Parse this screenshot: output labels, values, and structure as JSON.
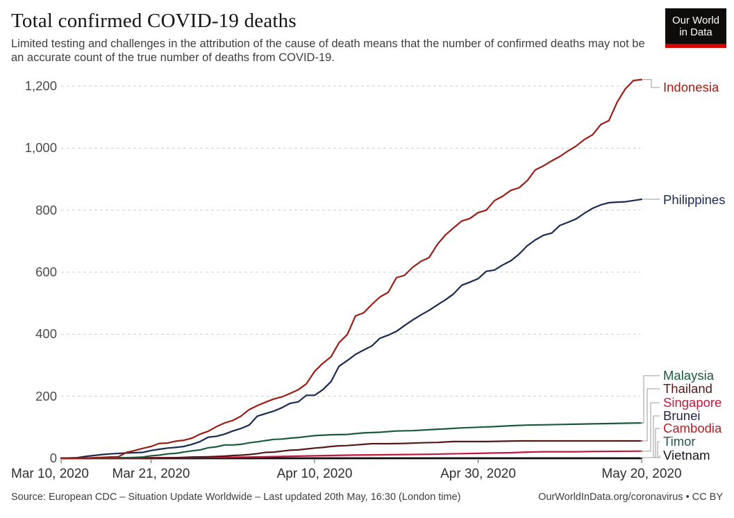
{
  "header": {
    "title": "Total confirmed COVID-19 deaths",
    "subtitle": "Limited testing and challenges in the attribution of the cause of death means that the number of confirmed deaths may not be an accurate count of the true number of deaths from COVID-19."
  },
  "logo": {
    "line1": "Our World",
    "line2": "in Data",
    "bg_color": "#0d0c0b",
    "accent_color": "#d40000"
  },
  "chart_data": {
    "type": "line",
    "title": "Total confirmed COVID-19 deaths",
    "x_axis": {
      "tick_labels": [
        "Mar 10, 2020",
        "Mar 21, 2020",
        "Apr 10, 2020",
        "Apr 30, 2020",
        "May 20, 2020"
      ],
      "tick_days_from_start": [
        0,
        11,
        31,
        51,
        71
      ],
      "range_days": [
        0,
        71
      ],
      "start_date": "Mar 10, 2020",
      "end_date": "May 20, 2020"
    },
    "y_axis": {
      "ticks": [
        0,
        200,
        400,
        600,
        800,
        1000,
        1200
      ],
      "tick_labels": [
        "0",
        "200",
        "400",
        "600",
        "800",
        "1,000",
        "1,200"
      ],
      "ylim": [
        0,
        1280
      ],
      "gridlines": "dashed"
    },
    "legend_position": "right-end-labels",
    "series": [
      {
        "name": "Indonesia",
        "color": "#9b1c13",
        "end_value": 1221,
        "points": [
          [
            0,
            0
          ],
          [
            3,
            1
          ],
          [
            6,
            4
          ],
          [
            7,
            5
          ],
          [
            8,
            19
          ],
          [
            9,
            25
          ],
          [
            10,
            32
          ],
          [
            11,
            38
          ],
          [
            12,
            48
          ],
          [
            13,
            49
          ],
          [
            14,
            55
          ],
          [
            15,
            58
          ],
          [
            16,
            65
          ],
          [
            17,
            78
          ],
          [
            18,
            87
          ],
          [
            19,
            102
          ],
          [
            20,
            114
          ],
          [
            21,
            122
          ],
          [
            22,
            136
          ],
          [
            23,
            157
          ],
          [
            24,
            170
          ],
          [
            25,
            181
          ],
          [
            26,
            191
          ],
          [
            27,
            198
          ],
          [
            28,
            209
          ],
          [
            29,
            221
          ],
          [
            30,
            240
          ],
          [
            31,
            280
          ],
          [
            32,
            306
          ],
          [
            33,
            327
          ],
          [
            34,
            373
          ],
          [
            35,
            399
          ],
          [
            36,
            459
          ],
          [
            37,
            469
          ],
          [
            38,
            496
          ],
          [
            39,
            520
          ],
          [
            40,
            535
          ],
          [
            41,
            582
          ],
          [
            42,
            590
          ],
          [
            43,
            616
          ],
          [
            44,
            635
          ],
          [
            45,
            647
          ],
          [
            46,
            689
          ],
          [
            47,
            720
          ],
          [
            48,
            743
          ],
          [
            49,
            765
          ],
          [
            50,
            773
          ],
          [
            51,
            792
          ],
          [
            52,
            800
          ],
          [
            53,
            831
          ],
          [
            54,
            845
          ],
          [
            55,
            864
          ],
          [
            56,
            872
          ],
          [
            57,
            895
          ],
          [
            58,
            930
          ],
          [
            59,
            943
          ],
          [
            60,
            959
          ],
          [
            61,
            973
          ],
          [
            62,
            991
          ],
          [
            63,
            1007
          ],
          [
            64,
            1028
          ],
          [
            65,
            1043
          ],
          [
            66,
            1076
          ],
          [
            67,
            1089
          ],
          [
            68,
            1148
          ],
          [
            69,
            1191
          ],
          [
            70,
            1218
          ],
          [
            71,
            1221
          ]
        ]
      },
      {
        "name": "Philippines",
        "color": "#182a50",
        "end_value": 835,
        "points": [
          [
            0,
            0
          ],
          [
            2,
            2
          ],
          [
            3,
            6
          ],
          [
            4,
            9
          ],
          [
            5,
            12
          ],
          [
            6,
            14
          ],
          [
            8,
            17
          ],
          [
            10,
            19
          ],
          [
            11,
            25
          ],
          [
            12,
            29
          ],
          [
            13,
            33
          ],
          [
            14,
            35
          ],
          [
            15,
            38
          ],
          [
            16,
            45
          ],
          [
            17,
            54
          ],
          [
            18,
            68
          ],
          [
            19,
            71
          ],
          [
            20,
            78
          ],
          [
            21,
            88
          ],
          [
            22,
            96
          ],
          [
            23,
            107
          ],
          [
            24,
            136
          ],
          [
            25,
            144
          ],
          [
            26,
            152
          ],
          [
            27,
            163
          ],
          [
            28,
            177
          ],
          [
            29,
            182
          ],
          [
            30,
            203
          ],
          [
            31,
            203
          ],
          [
            32,
            221
          ],
          [
            33,
            247
          ],
          [
            34,
            297
          ],
          [
            35,
            315
          ],
          [
            36,
            335
          ],
          [
            37,
            349
          ],
          [
            38,
            362
          ],
          [
            39,
            387
          ],
          [
            40,
            397
          ],
          [
            41,
            409
          ],
          [
            42,
            428
          ],
          [
            43,
            446
          ],
          [
            44,
            462
          ],
          [
            45,
            477
          ],
          [
            46,
            494
          ],
          [
            47,
            511
          ],
          [
            48,
            530
          ],
          [
            49,
            558
          ],
          [
            50,
            568
          ],
          [
            51,
            579
          ],
          [
            52,
            603
          ],
          [
            53,
            607
          ],
          [
            54,
            623
          ],
          [
            55,
            637
          ],
          [
            56,
            658
          ],
          [
            57,
            685
          ],
          [
            58,
            704
          ],
          [
            59,
            719
          ],
          [
            60,
            726
          ],
          [
            61,
            751
          ],
          [
            62,
            761
          ],
          [
            63,
            772
          ],
          [
            64,
            790
          ],
          [
            65,
            806
          ],
          [
            66,
            817
          ],
          [
            67,
            824
          ],
          [
            68,
            826
          ],
          [
            69,
            827
          ],
          [
            70,
            831
          ],
          [
            71,
            835
          ]
        ]
      },
      {
        "name": "Malaysia",
        "color": "#1a5a3c",
        "end_value": 114,
        "points": [
          [
            0,
            0
          ],
          [
            7,
            2
          ],
          [
            8,
            2
          ],
          [
            9,
            3
          ],
          [
            10,
            4
          ],
          [
            11,
            8
          ],
          [
            12,
            10
          ],
          [
            13,
            14
          ],
          [
            14,
            16
          ],
          [
            15,
            20
          ],
          [
            16,
            24
          ],
          [
            17,
            27
          ],
          [
            18,
            34
          ],
          [
            19,
            37
          ],
          [
            20,
            43
          ],
          [
            21,
            43
          ],
          [
            22,
            45
          ],
          [
            23,
            50
          ],
          [
            24,
            53
          ],
          [
            25,
            57
          ],
          [
            26,
            61
          ],
          [
            27,
            62
          ],
          [
            28,
            65
          ],
          [
            29,
            67
          ],
          [
            30,
            70
          ],
          [
            31,
            73
          ],
          [
            33,
            76
          ],
          [
            35,
            77
          ],
          [
            37,
            82
          ],
          [
            39,
            84
          ],
          [
            41,
            88
          ],
          [
            43,
            89
          ],
          [
            45,
            92
          ],
          [
            47,
            95
          ],
          [
            49,
            98
          ],
          [
            51,
            100
          ],
          [
            53,
            102
          ],
          [
            55,
            105
          ],
          [
            57,
            107
          ],
          [
            59,
            108
          ],
          [
            61,
            109
          ],
          [
            63,
            110
          ],
          [
            65,
            111
          ],
          [
            67,
            112
          ],
          [
            69,
            113
          ],
          [
            71,
            114
          ]
        ]
      },
      {
        "name": "Thailand",
        "color": "#521a16",
        "end_value": 56,
        "points": [
          [
            0,
            1
          ],
          [
            12,
            1
          ],
          [
            14,
            2
          ],
          [
            16,
            4
          ],
          [
            18,
            5
          ],
          [
            20,
            7
          ],
          [
            21,
            9
          ],
          [
            22,
            10
          ],
          [
            23,
            12
          ],
          [
            24,
            15
          ],
          [
            25,
            19
          ],
          [
            26,
            20
          ],
          [
            27,
            23
          ],
          [
            28,
            26
          ],
          [
            29,
            27
          ],
          [
            30,
            30
          ],
          [
            31,
            33
          ],
          [
            32,
            35
          ],
          [
            33,
            38
          ],
          [
            34,
            40
          ],
          [
            35,
            41
          ],
          [
            36,
            43
          ],
          [
            37,
            45
          ],
          [
            38,
            47
          ],
          [
            40,
            47
          ],
          [
            42,
            48
          ],
          [
            44,
            50
          ],
          [
            46,
            51
          ],
          [
            48,
            54
          ],
          [
            52,
            54
          ],
          [
            56,
            56
          ],
          [
            60,
            56
          ],
          [
            66,
            56
          ],
          [
            71,
            56
          ]
        ]
      },
      {
        "name": "Singapore",
        "color": "#c2173b",
        "end_value": 23,
        "points": [
          [
            0,
            0
          ],
          [
            10,
            0
          ],
          [
            11,
            2
          ],
          [
            15,
            2
          ],
          [
            17,
            3
          ],
          [
            20,
            3
          ],
          [
            23,
            4
          ],
          [
            25,
            5
          ],
          [
            27,
            6
          ],
          [
            29,
            7
          ],
          [
            31,
            8
          ],
          [
            33,
            9
          ],
          [
            35,
            10
          ],
          [
            38,
            11
          ],
          [
            42,
            12
          ],
          [
            45,
            13
          ],
          [
            47,
            14
          ],
          [
            49,
            15
          ],
          [
            51,
            16
          ],
          [
            53,
            17
          ],
          [
            55,
            18
          ],
          [
            57,
            20
          ],
          [
            59,
            21
          ],
          [
            63,
            21
          ],
          [
            65,
            22
          ],
          [
            71,
            23
          ]
        ]
      },
      {
        "name": "Brunei",
        "color": "#25224e",
        "end_value": 1,
        "points": [
          [
            0,
            0
          ],
          [
            17,
            0
          ],
          [
            18,
            1
          ],
          [
            71,
            1
          ]
        ]
      },
      {
        "name": "Cambodia",
        "color": "#b02025",
        "end_value": 0,
        "points": [
          [
            0,
            0
          ],
          [
            71,
            0
          ]
        ]
      },
      {
        "name": "Timor",
        "color": "#20574d",
        "end_value": 0,
        "points": [
          [
            0,
            0
          ],
          [
            71,
            0
          ]
        ]
      },
      {
        "name": "Vietnam",
        "color": "#17171d",
        "end_value": 0,
        "points": [
          [
            0,
            0
          ],
          [
            71,
            0
          ]
        ]
      }
    ]
  },
  "footer": {
    "source_left": "Source: European CDC – Situation Update Worldwide – Last updated 20th May, 16:30 (London time)",
    "source_right": "OurWorldInData.org/coronavirus • CC BY"
  }
}
